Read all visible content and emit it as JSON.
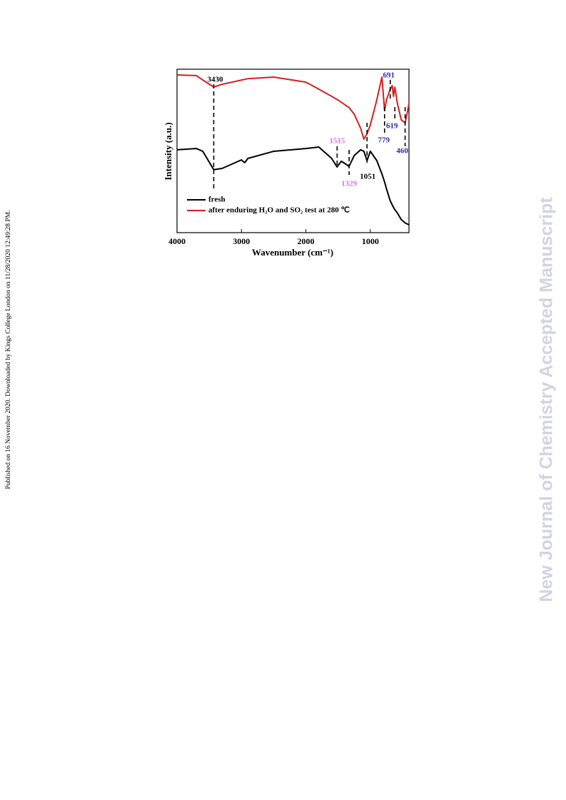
{
  "side_note": "Published on 16 November 2020. Downloaded by Kings College London on 11/28/2020 12:49:28 PM.",
  "watermark": "New Journal of Chemistry Accepted Manuscript",
  "chart_data": {
    "type": "line",
    "x_label": "Wavenumber (cm⁻¹)",
    "y_label": "Intensity (a.u.)",
    "x": [
      4000,
      3700,
      3600,
      3430,
      3300,
      3100,
      3000,
      2950,
      2900,
      2500,
      2000,
      1800,
      1600,
      1515,
      1450,
      1329,
      1250,
      1150,
      1100,
      1051,
      1000,
      900,
      820,
      779,
      750,
      691,
      660,
      640,
      619,
      580,
      520,
      460,
      420,
      400
    ],
    "series": [
      {
        "name": "fresh",
        "color": "#000000",
        "values": [
          50.7,
          51.5,
          49.8,
          38.5,
          39.3,
          42.8,
          44.5,
          42.8,
          45.4,
          49.8,
          51.5,
          52.4,
          45.4,
          40.2,
          43.7,
          40.6,
          47.2,
          50.7,
          49.8,
          44.1,
          49.8,
          44.1,
          36.0,
          31.0,
          27.0,
          19.5,
          17.0,
          15.5,
          14.0,
          12.0,
          8.0,
          6.0,
          5.2,
          4.8
        ]
      },
      {
        "name": "after enduring H₂O and  SO₂ test at 280 ℃",
        "color": "#d42020",
        "values": [
          96.5,
          96.1,
          93.4,
          89.1,
          90.8,
          92.5,
          93.4,
          93.8,
          94.2,
          95.2,
          92.1,
          87.8,
          83.4,
          81.5,
          79.8,
          76.5,
          72.5,
          63.8,
          57.2,
          60.5,
          65.9,
          81.2,
          95.2,
          74.7,
          81.2,
          87.8,
          90.0,
          83.4,
          89.1,
          79.0,
          69.0,
          67.2,
          74.7,
          79.0
        ]
      }
    ],
    "xlim": [
      4000,
      400
    ],
    "ylim": [
      0,
      100
    ],
    "xticks": [
      4000,
      3000,
      2000,
      1000
    ],
    "annotations": [
      {
        "label": "3430",
        "x": 3430,
        "color": "#000000"
      },
      {
        "label": "1515",
        "x": 1515,
        "color": "#e070e0"
      },
      {
        "label": "1329",
        "x": 1329,
        "color": "#e070e0"
      },
      {
        "label": "1051",
        "x": 1051,
        "color": "#000000"
      },
      {
        "label": "691",
        "x": 691,
        "color": "#2a2aa8"
      },
      {
        "label": "619",
        "x": 619,
        "color": "#2a2aa8"
      },
      {
        "label": "779",
        "x": 779,
        "color": "#2a2aa8"
      },
      {
        "label": "460",
        "x": 460,
        "color": "#2a2aa8"
      }
    ]
  }
}
